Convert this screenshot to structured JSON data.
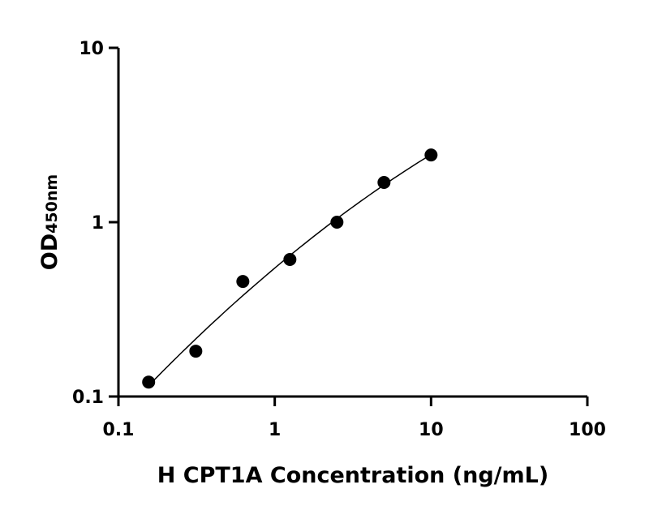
{
  "chart_data": {
    "type": "scatter",
    "title": "",
    "xlabel": "H CPT1A Concentration (ng/mL)",
    "ylabel": "OD",
    "ylabel_subscript": "450nm",
    "x_scale": "log",
    "y_scale": "log",
    "xlim": [
      0.1,
      100
    ],
    "ylim": [
      0.1,
      10
    ],
    "x_ticks": [
      "0.1",
      "1",
      "10",
      "100"
    ],
    "y_ticks": [
      "0.1",
      "1",
      "10"
    ],
    "grid": false,
    "fit_curve": true,
    "point_color": "#000000",
    "x": [
      0.156,
      0.3125,
      0.625,
      1.25,
      2.5,
      5,
      10
    ],
    "y": [
      0.121,
      0.182,
      0.457,
      0.611,
      1.0,
      1.69,
      2.43
    ]
  }
}
